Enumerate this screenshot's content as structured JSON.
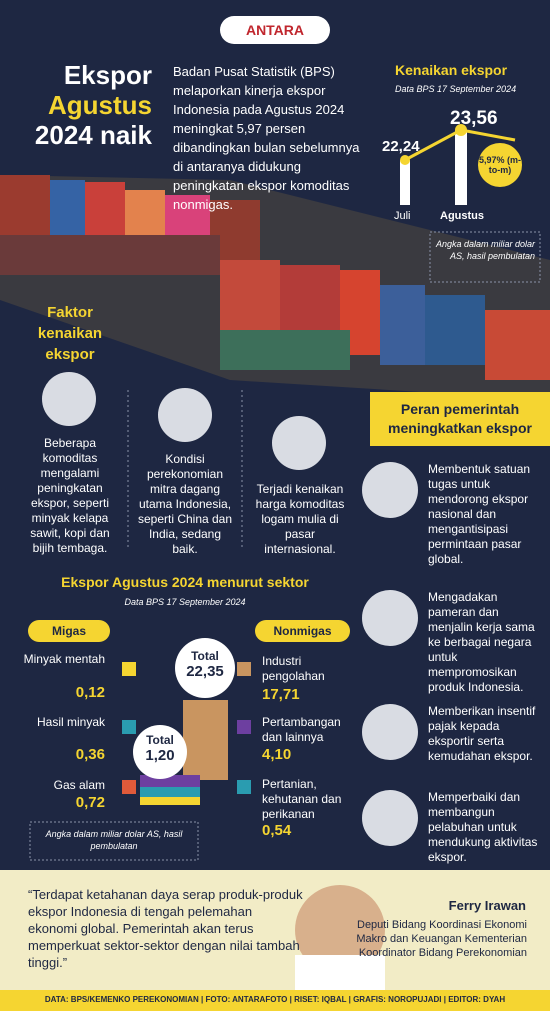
{
  "logo": "ANTARA",
  "header": {
    "title": [
      "Ekspor",
      "Agustus",
      "2024 naik"
    ],
    "intro": "Badan Pusat Statistik (BPS) melaporkan kinerja ekspor Indonesia pada Agustus 2024 meningkat 5,97 persen dibandingkan bulan sebelumnya di antaranya didukung peningkatan ekspor komoditas nonmigas."
  },
  "increase": {
    "title": "Kenaikan ekspor",
    "source": "Data BPS 17 September 2024",
    "july_value": "22,24",
    "august_value": "23,56",
    "growth": "5,97% (m-to-m)",
    "july_label": "Juli",
    "august_label": "Agustus",
    "note": "Angka dalam miliar dolar AS, hasil pembulatan"
  },
  "factors": {
    "title": "Faktor kenaikan ekspor",
    "items": [
      "Beberapa komoditas mengalami peningkatan ekspor, seperti minyak kelapa sawit, kopi dan bijih tembaga.",
      "Kondisi perekonomian mitra dagang utama Indonesia, seperti China dan India, sedang baik.",
      "Terjadi kenaikan harga komoditas logam mulia di pasar internasional."
    ]
  },
  "roles": {
    "title": "Peran pemerintah meningkatkan ekspor",
    "items": [
      "Membentuk satuan tugas untuk mendorong ekspor nasional dan mengantisipasi permintaan pasar global.",
      "Mengadakan pameran dan menjalin kerja sama ke berbagai negara untuk mempromosikan produk Indonesia.",
      "Memberikan insentif pajak kepada eksportir serta kemudahan ekspor.",
      "Memperbaiki dan membangun pelabuhan untuk mendukung aktivitas ekspor."
    ]
  },
  "sectors": {
    "title": "Ekspor Agustus 2024 menurut sektor",
    "source": "Data BPS 17 September 2024",
    "migas": {
      "label": "Migas",
      "total_label": "Total",
      "total": "1,20",
      "items": [
        {
          "name": "Minyak mentah",
          "value": "0,12"
        },
        {
          "name": "Hasil minyak",
          "value": "0,36"
        },
        {
          "name": "Gas alam",
          "value": "0,72"
        }
      ]
    },
    "nonmigas": {
      "label": "Nonmigas",
      "total_label": "Total",
      "total": "22,35",
      "items": [
        {
          "name": "Industri pengolahan",
          "value": "17,71"
        },
        {
          "name": "Pertambangan dan lainnya",
          "value": "4,10"
        },
        {
          "name": "Pertanian, kehutanan dan perikanan",
          "value": "0,54"
        }
      ]
    },
    "note": "Angka dalam miliar dolar AS, hasil pembulatan"
  },
  "quote": {
    "text": "“Terdapat ketahanan daya serap produk-produk ekspor Indonesia di tengah pelemahan ekonomi global. Pemerintah akan terus memperkuat sektor-sektor dengan nilai tambah tinggi.”",
    "name": "Ferry Irawan",
    "position": "Deputi Bidang Koordinasi Ekonomi Makro dan Keuangan Kementerian Koordinator Bidang Perekonomian"
  },
  "footer": {
    "credits": "DATA: BPS/KEMENKO PEREKONOMIAN  |  FOTO: ANTARAFOTO  |  RISET: IQBAL  |  GRAFIS: NOROPUJADI  |  EDITOR: DYAH"
  }
}
